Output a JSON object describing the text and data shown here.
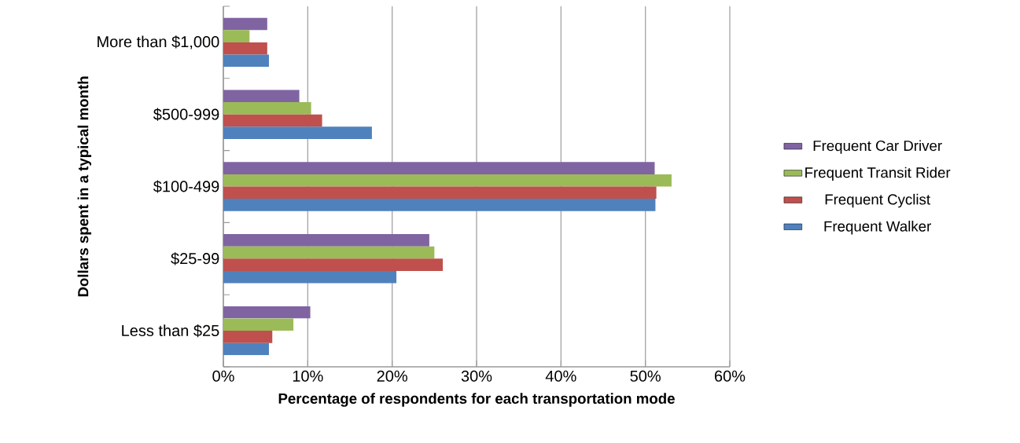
{
  "chart_data": {
    "type": "bar",
    "orientation": "horizontal",
    "xlabel": "Percentage of respondents for each transportation mode",
    "ylabel": "Dollars spent in a typical month",
    "categories": [
      "More than $1,000",
      "$500-999",
      "$100-499",
      "$25-99",
      "Less than $25"
    ],
    "series": [
      {
        "name": "Frequent Car Driver",
        "color": "#8064a2",
        "values": [
          5.2,
          9.0,
          51.1,
          24.4,
          10.3
        ]
      },
      {
        "name": "Frequent Transit Rider",
        "color": "#9bbb59",
        "values": [
          3.1,
          10.4,
          53.1,
          25.0,
          8.3
        ]
      },
      {
        "name": "Frequent Cyclist",
        "color": "#c0504d",
        "values": [
          5.2,
          11.7,
          51.3,
          26.0,
          5.8
        ]
      },
      {
        "name": "Frequent Walker",
        "color": "#4f81bd",
        "values": [
          5.4,
          17.6,
          51.2,
          20.5,
          5.4
        ]
      }
    ],
    "xlim": [
      0,
      60
    ],
    "xticks": [
      {
        "value": 0,
        "label": "0%"
      },
      {
        "value": 10,
        "label": "10%"
      },
      {
        "value": 20,
        "label": "20%"
      },
      {
        "value": 30,
        "label": "30%"
      },
      {
        "value": 40,
        "label": "40%"
      },
      {
        "value": 50,
        "label": "50%"
      },
      {
        "value": 60,
        "label": "60%"
      }
    ],
    "grid": "x",
    "legend": "right"
  }
}
